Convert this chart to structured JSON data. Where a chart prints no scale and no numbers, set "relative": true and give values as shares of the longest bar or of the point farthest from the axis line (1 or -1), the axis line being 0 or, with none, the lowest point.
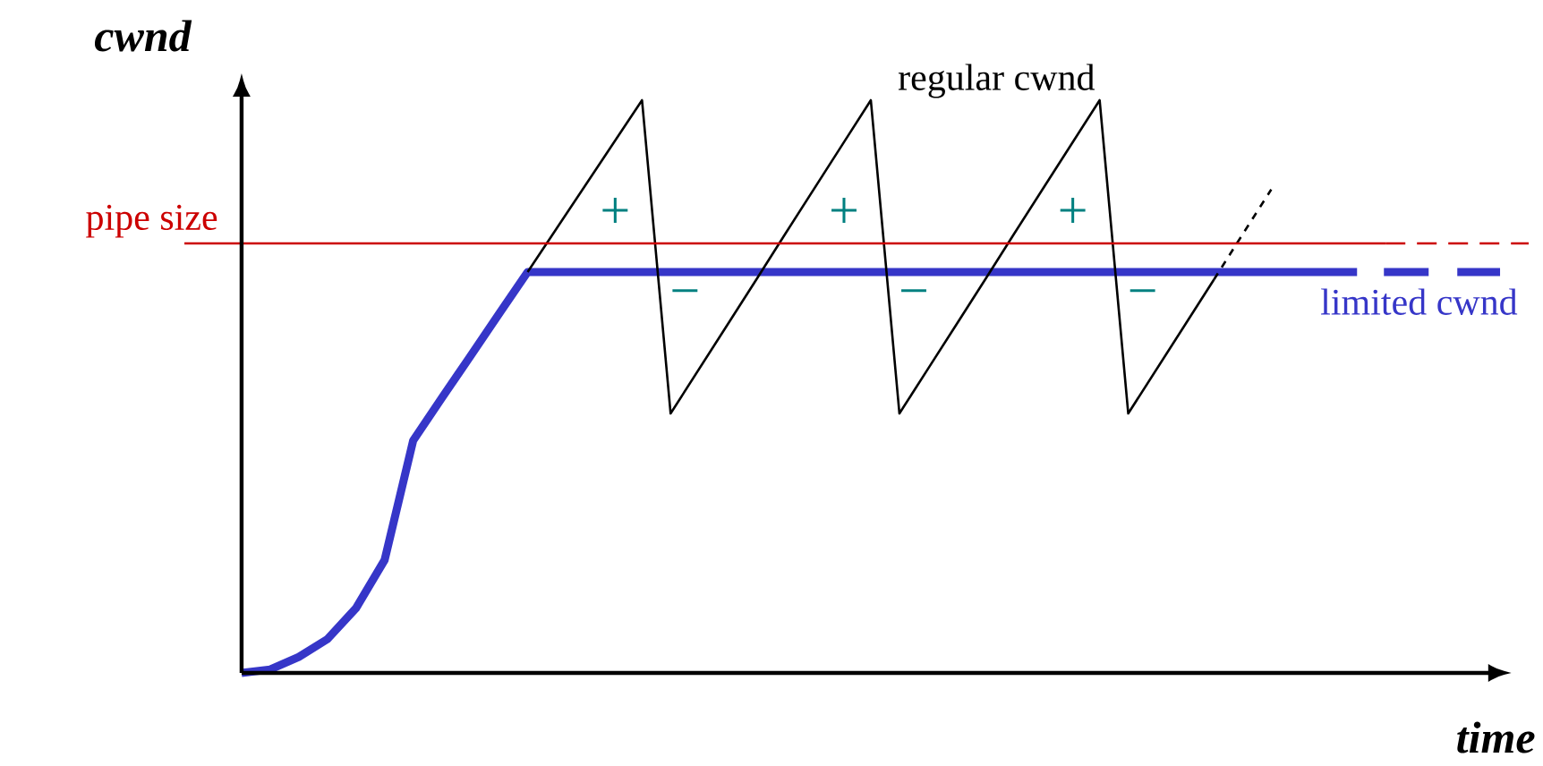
{
  "chart_data": {
    "type": "line",
    "relative": true,
    "xlabel": "time",
    "ylabel": "cwnd",
    "marker": "none",
    "categories": [
      null,
      null,
      null,
      null,
      null,
      null,
      null,
      null,
      null,
      null,
      null,
      null,
      null,
      null,
      null,
      null,
      null,
      null,
      null,
      null,
      null,
      null,
      null,
      null,
      null,
      null,
      null,
      null,
      null,
      null,
      null,
      null,
      null,
      null,
      null,
      null,
      null,
      null,
      null,
      null,
      null,
      null,
      null,
      null,
      null,
      null,
      null,
      null
    ],
    "series": [
      {
        "name": "limited cwnd",
        "color": "#3636c8",
        "line_style": "solid",
        "values": [
          null,
          null,
          0,
          0.006,
          0.028,
          0.059,
          0.113,
          0.197,
          0.406,
          0.48,
          0.553,
          0.627,
          0.7,
          0.7,
          0.7,
          0.7,
          0.7,
          0.7,
          0.7,
          0.7,
          0.7,
          0.7,
          0.7,
          0.7,
          0.7,
          0.7,
          0.7,
          0.7,
          0.7,
          0.7,
          0.7,
          0.7,
          0.7,
          0.7,
          0.7,
          0.7,
          0.7,
          0.7,
          0.7,
          0.7,
          0.7,
          0.7,
          null,
          null,
          null,
          null,
          null,
          null
        ]
      },
      {
        "color": "#3636c8",
        "line_style": "dashed",
        "values": [
          null,
          null,
          null,
          null,
          null,
          null,
          null,
          null,
          null,
          null,
          null,
          null,
          null,
          null,
          null,
          null,
          null,
          null,
          null,
          null,
          null,
          null,
          null,
          null,
          null,
          null,
          null,
          null,
          null,
          null,
          null,
          null,
          null,
          null,
          null,
          null,
          null,
          null,
          null,
          null,
          null,
          0.7,
          0.7,
          0.7,
          0.7,
          0.7,
          0.7,
          null
        ]
      },
      {
        "name": "regular cwnd",
        "color": "#000000",
        "line_style": "solid",
        "values": [
          null,
          null,
          null,
          null,
          null,
          null,
          null,
          null,
          null,
          null,
          null,
          null,
          0.7,
          0.775,
          0.85,
          0.925,
          1,
          0.453,
          0.531,
          0.609,
          0.687,
          0.766,
          0.844,
          0.922,
          1,
          0.453,
          0.531,
          0.609,
          0.687,
          0.766,
          0.844,
          0.922,
          1,
          0.453,
          0.531,
          0.609,
          0.687,
          null,
          null,
          null,
          null,
          null,
          null,
          null,
          null,
          null,
          null,
          null
        ]
      },
      {
        "color": "#000000",
        "line_style": "dotted",
        "values": [
          null,
          null,
          null,
          null,
          null,
          null,
          null,
          null,
          null,
          null,
          null,
          null,
          null,
          null,
          null,
          null,
          null,
          null,
          null,
          null,
          null,
          null,
          null,
          null,
          null,
          null,
          null,
          null,
          null,
          null,
          null,
          null,
          null,
          null,
          null,
          null,
          0.687,
          0.766,
          0.844,
          null,
          null,
          null,
          null,
          null,
          null,
          null,
          null,
          null
        ]
      },
      {
        "name": "pipe size",
        "color": "#cc0000",
        "line_style": "solid",
        "values": [
          0.75,
          0.75,
          0.75,
          0.75,
          0.75,
          0.75,
          0.75,
          0.75,
          0.75,
          0.75,
          0.75,
          0.75,
          0.75,
          0.75,
          0.75,
          0.75,
          0.75,
          0.75,
          0.75,
          0.75,
          0.75,
          0.75,
          0.75,
          0.75,
          0.75,
          0.75,
          0.75,
          0.75,
          0.75,
          0.75,
          0.75,
          0.75,
          0.75,
          0.75,
          0.75,
          0.75,
          0.75,
          0.75,
          0.75,
          0.75,
          0.75,
          0.75,
          0.75,
          null,
          null,
          null,
          null,
          null
        ]
      },
      {
        "color": "#cc0000",
        "line_style": "dashed",
        "values": [
          null,
          null,
          null,
          null,
          null,
          null,
          null,
          null,
          null,
          null,
          null,
          null,
          null,
          null,
          null,
          null,
          null,
          null,
          null,
          null,
          null,
          null,
          null,
          null,
          null,
          null,
          null,
          null,
          null,
          null,
          null,
          null,
          null,
          null,
          null,
          null,
          null,
          null,
          null,
          null,
          null,
          null,
          0.75,
          0.75,
          0.75,
          0.75,
          0.75,
          0.75
        ]
      }
    ],
    "annotations": [
      "+",
      "+",
      "+",
      "−",
      "−",
      "−"
    ]
  }
}
